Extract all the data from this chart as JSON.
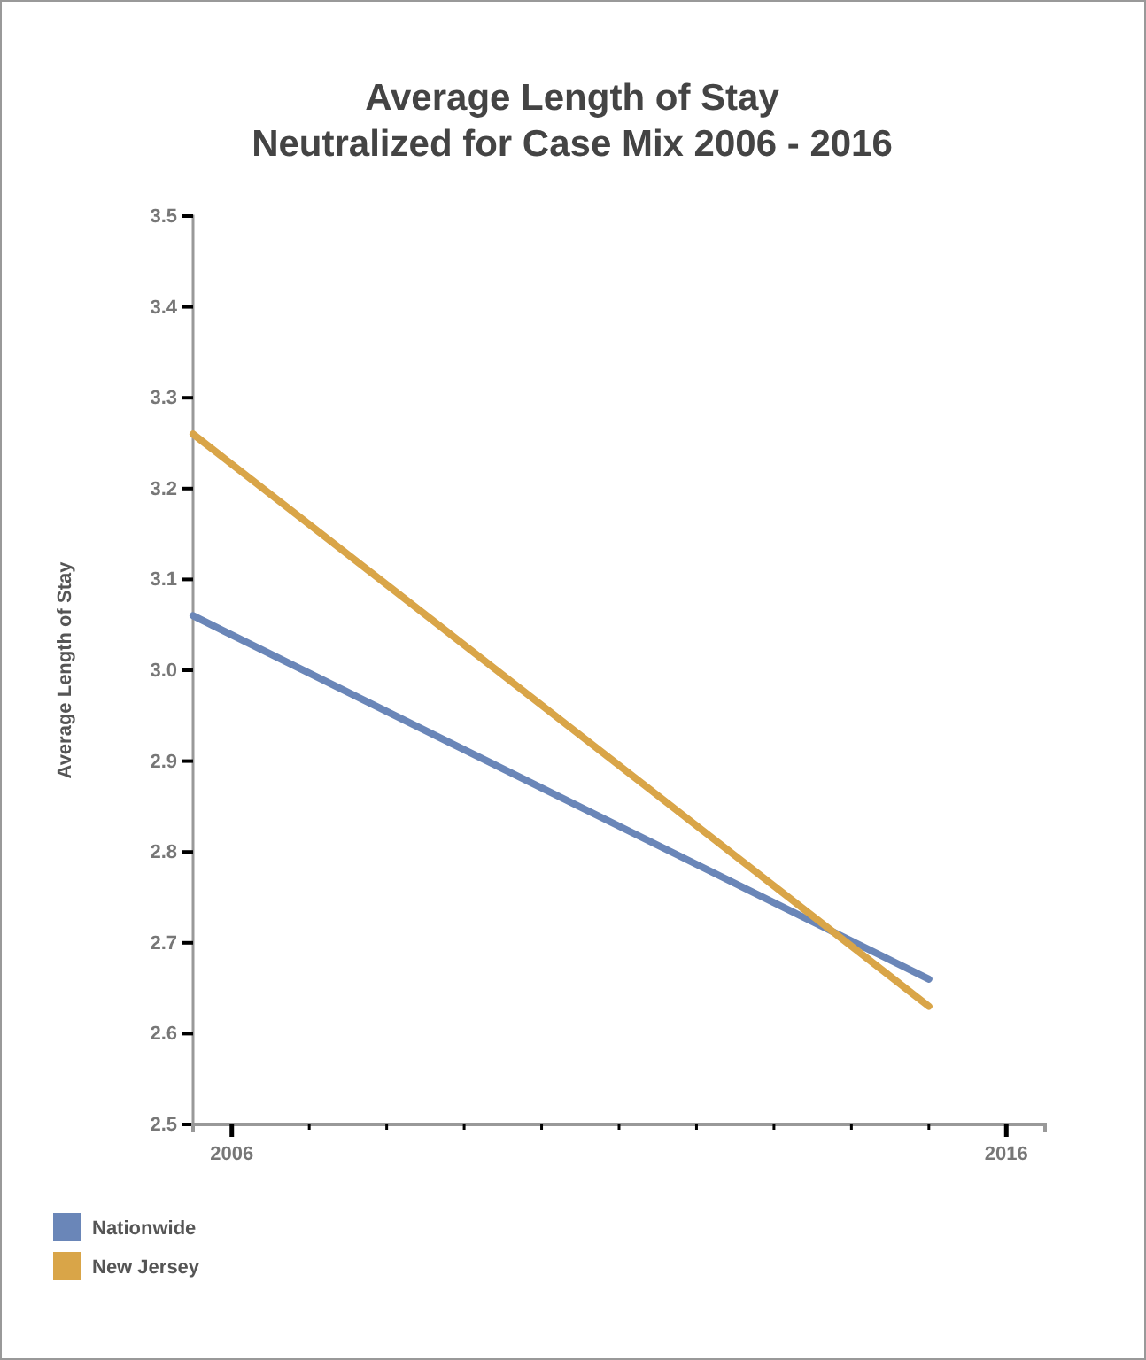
{
  "chart_data": {
    "type": "line",
    "title": "Average Length of Stay\nNeutralized for Case Mix 2006 - 2016",
    "ylabel": "Average Length of Stay",
    "x": [
      2005.5,
      2015
    ],
    "series": [
      {
        "name": "Nationwide",
        "color": "#6a86b8",
        "values": [
          3.06,
          2.66
        ]
      },
      {
        "name": "New Jersey",
        "color": "#d9a548",
        "values": [
          3.26,
          2.63
        ]
      }
    ],
    "xlim": [
      2005.5,
      2016.5
    ],
    "xticks": [
      2006,
      {
        "value": 2007,
        "label": null
      },
      {
        "value": 2008,
        "label": null
      },
      {
        "value": 2009,
        "label": null
      },
      {
        "value": 2010,
        "label": null
      },
      {
        "value": 2011,
        "label": null
      },
      {
        "value": 2012,
        "label": null
      },
      {
        "value": 2013,
        "label": null
      },
      {
        "value": 2014,
        "label": null
      },
      {
        "value": 2015,
        "label": null
      },
      2016
    ],
    "ylim": [
      2.5,
      3.5
    ],
    "yticks": [
      2.5,
      2.6,
      2.7,
      2.8,
      2.9,
      {
        "value": 3,
        "label": "3.0"
      },
      3.1,
      3.2,
      3.3,
      3.4,
      3.5
    ],
    "grid": false,
    "legend": "bottom left",
    "marker": "none",
    "line_style": "solid"
  }
}
